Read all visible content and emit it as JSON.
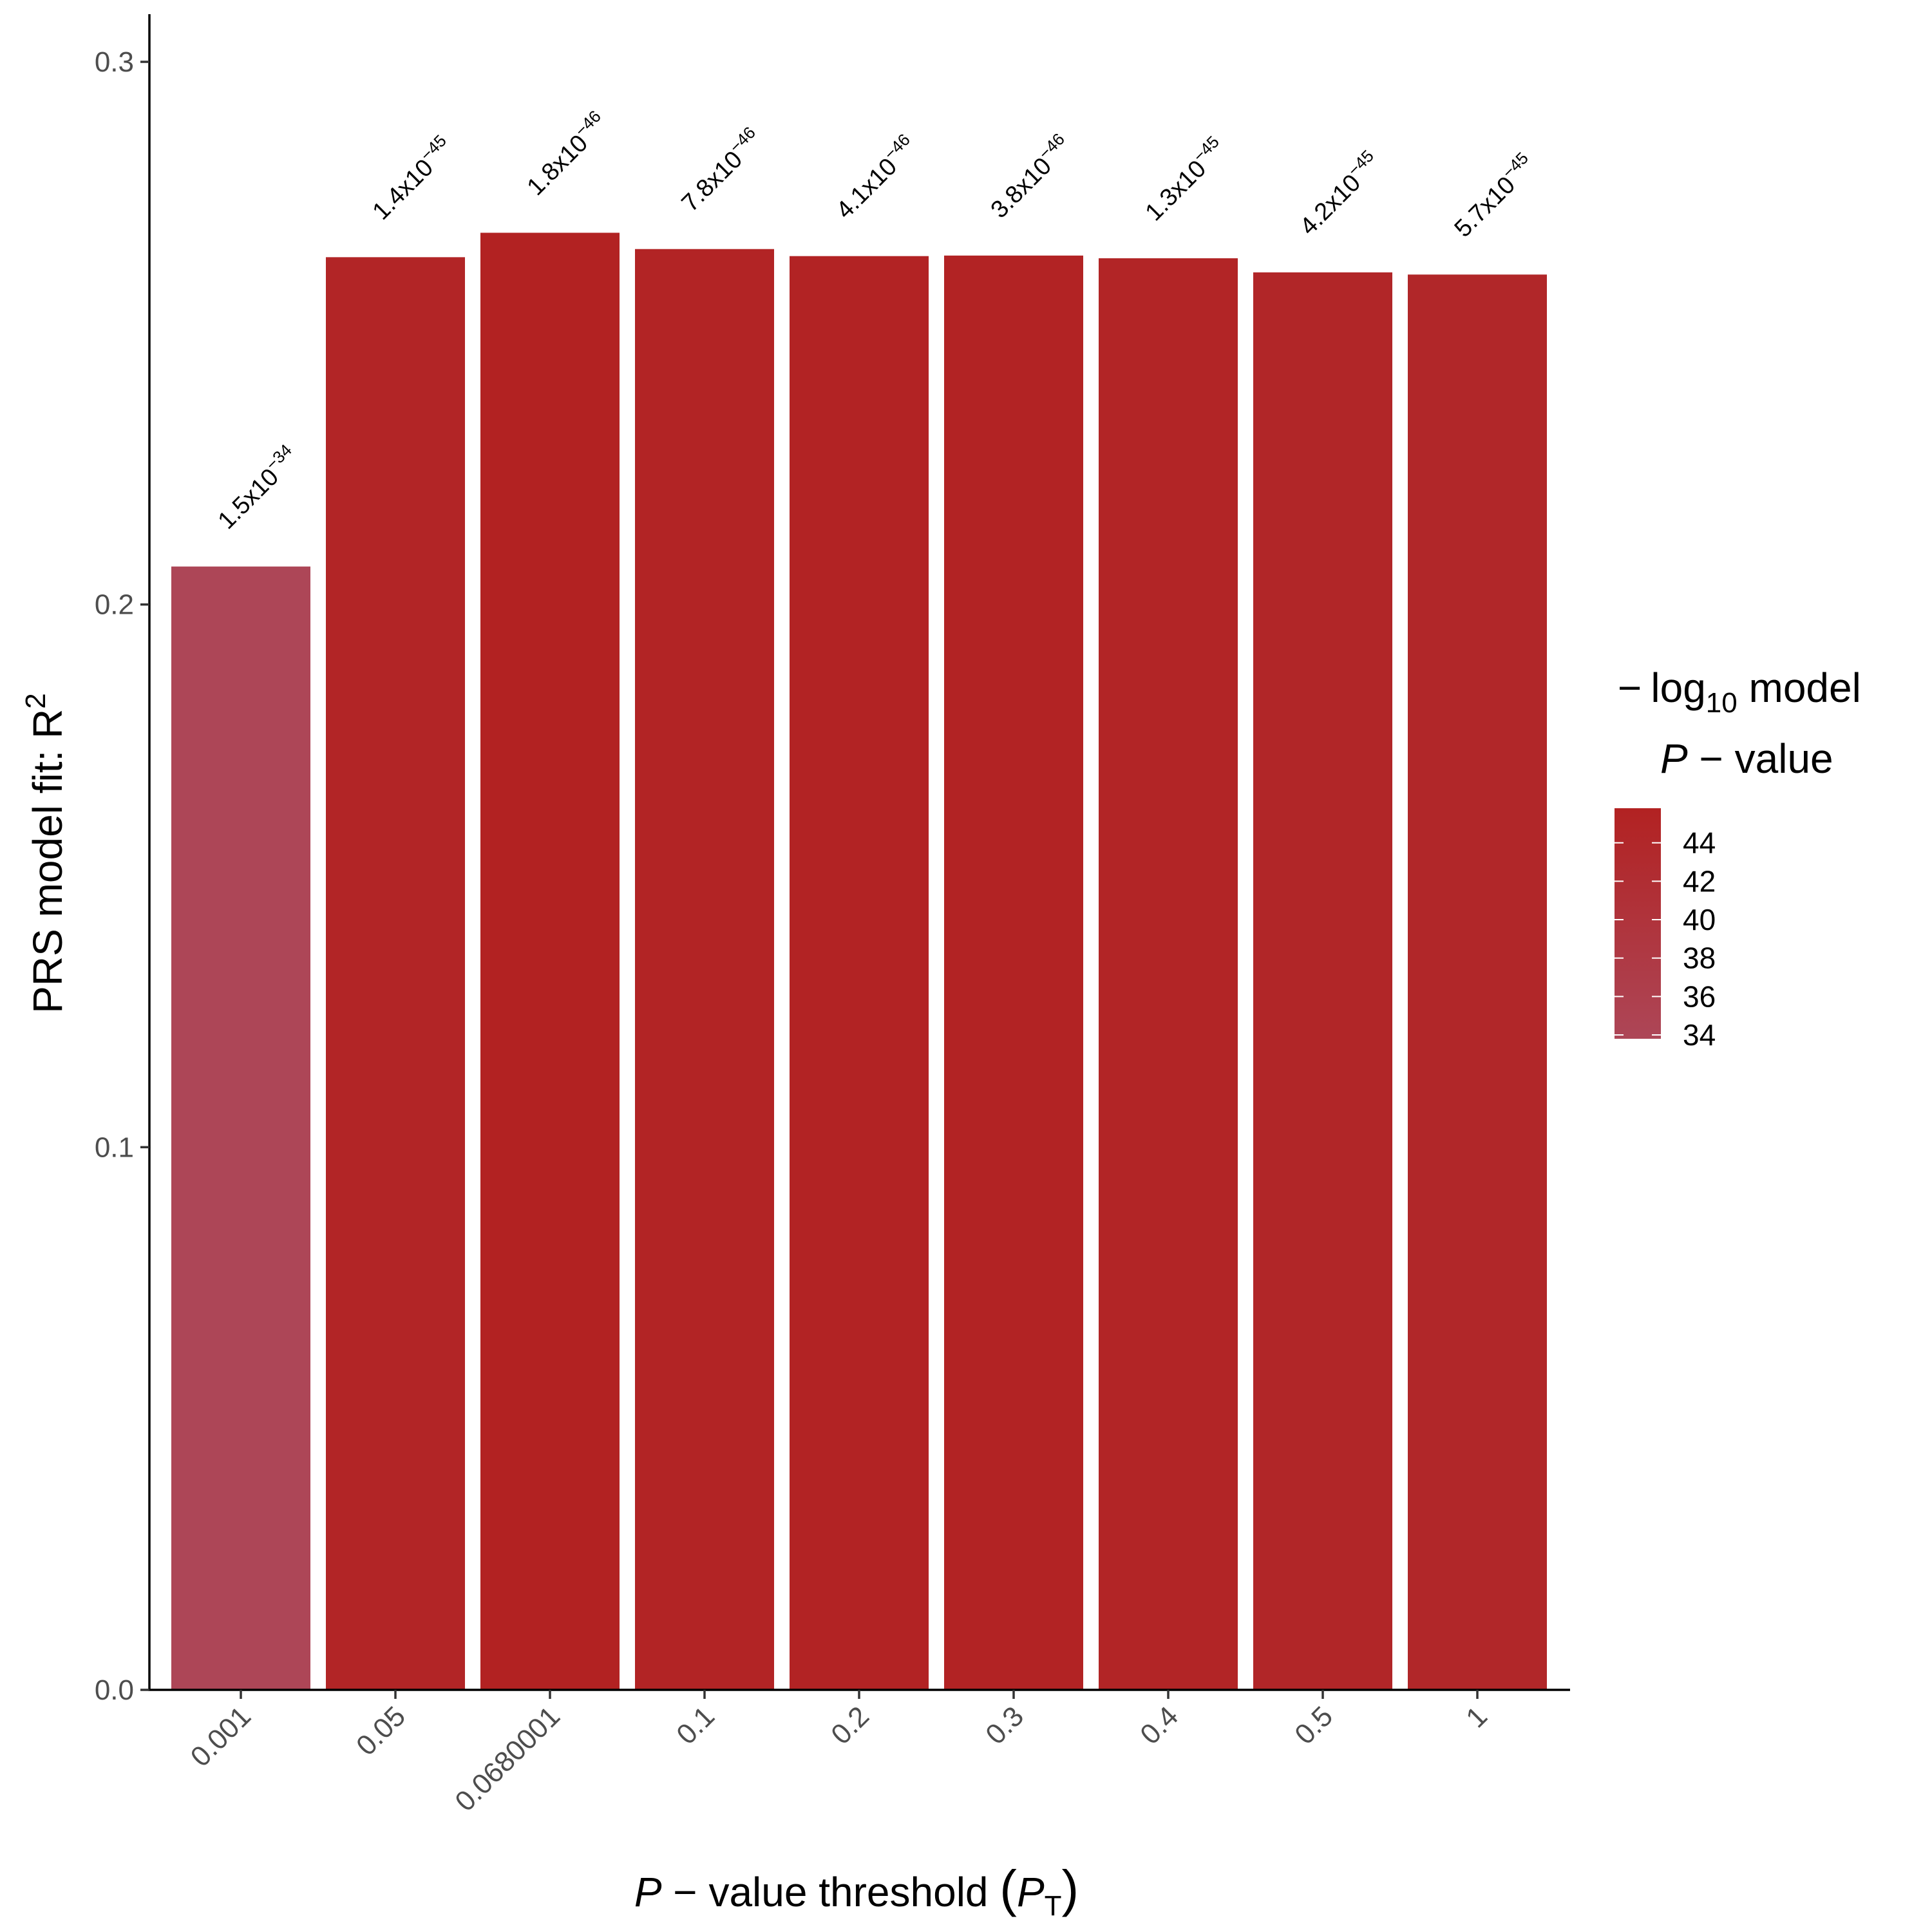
{
  "chart_data": {
    "type": "bar",
    "categories": [
      "0.001",
      "0.05",
      "0.0680001",
      "0.1",
      "0.2",
      "0.3",
      "0.4",
      "0.5",
      "1"
    ],
    "values": [
      0.207,
      0.264,
      0.2685,
      0.2655,
      0.2642,
      0.2643,
      0.2638,
      0.2612,
      0.2608
    ],
    "annotations": [
      {
        "mant": "1.5x10",
        "exp": "−34"
      },
      {
        "mant": "1.4x10",
        "exp": "−45"
      },
      {
        "mant": "1.8x10",
        "exp": "−46"
      },
      {
        "mant": "7.8x10",
        "exp": "−46"
      },
      {
        "mant": "4.1x10",
        "exp": "−46"
      },
      {
        "mant": "3.8x10",
        "exp": "−46"
      },
      {
        "mant": "1.3x10",
        "exp": "−45"
      },
      {
        "mant": "4.2x10",
        "exp": "−45"
      },
      {
        "mant": "5.7x10",
        "exp": "−45"
      }
    ],
    "fill_values": [
      33.8,
      44.85,
      45.74,
      45.11,
      45.39,
      45.42,
      44.89,
      44.38,
      44.24
    ],
    "ylim": [
      0,
      0.3
    ],
    "yticks": [
      "0.0",
      "0.1",
      "0.2",
      "0.3"
    ],
    "ytick_values": [
      0,
      0.1,
      0.2,
      0.3
    ],
    "ylabel": {
      "main": "PRS model fit:  R",
      "sup": "2"
    },
    "xlabel": {
      "italic": "P",
      "mid": " − value threshold ",
      "open": "(",
      "pt": "P",
      "sub": "T",
      "close": ")"
    },
    "legend": {
      "title_line1_minus": "−",
      "title_line1_log": "log",
      "title_line1_sub": "10",
      "title_line1_rest": " model",
      "title_line2_italic": "P",
      "title_line2_rest": " − value",
      "labels": [
        "44",
        "42",
        "40",
        "38",
        "36",
        "34"
      ],
      "label_values": [
        44,
        42,
        40,
        38,
        36,
        34
      ],
      "range": [
        33.8,
        45.8
      ],
      "color_low": "#AD4657",
      "color_high": "#B22222"
    },
    "grid": false,
    "legend_position": "right"
  }
}
